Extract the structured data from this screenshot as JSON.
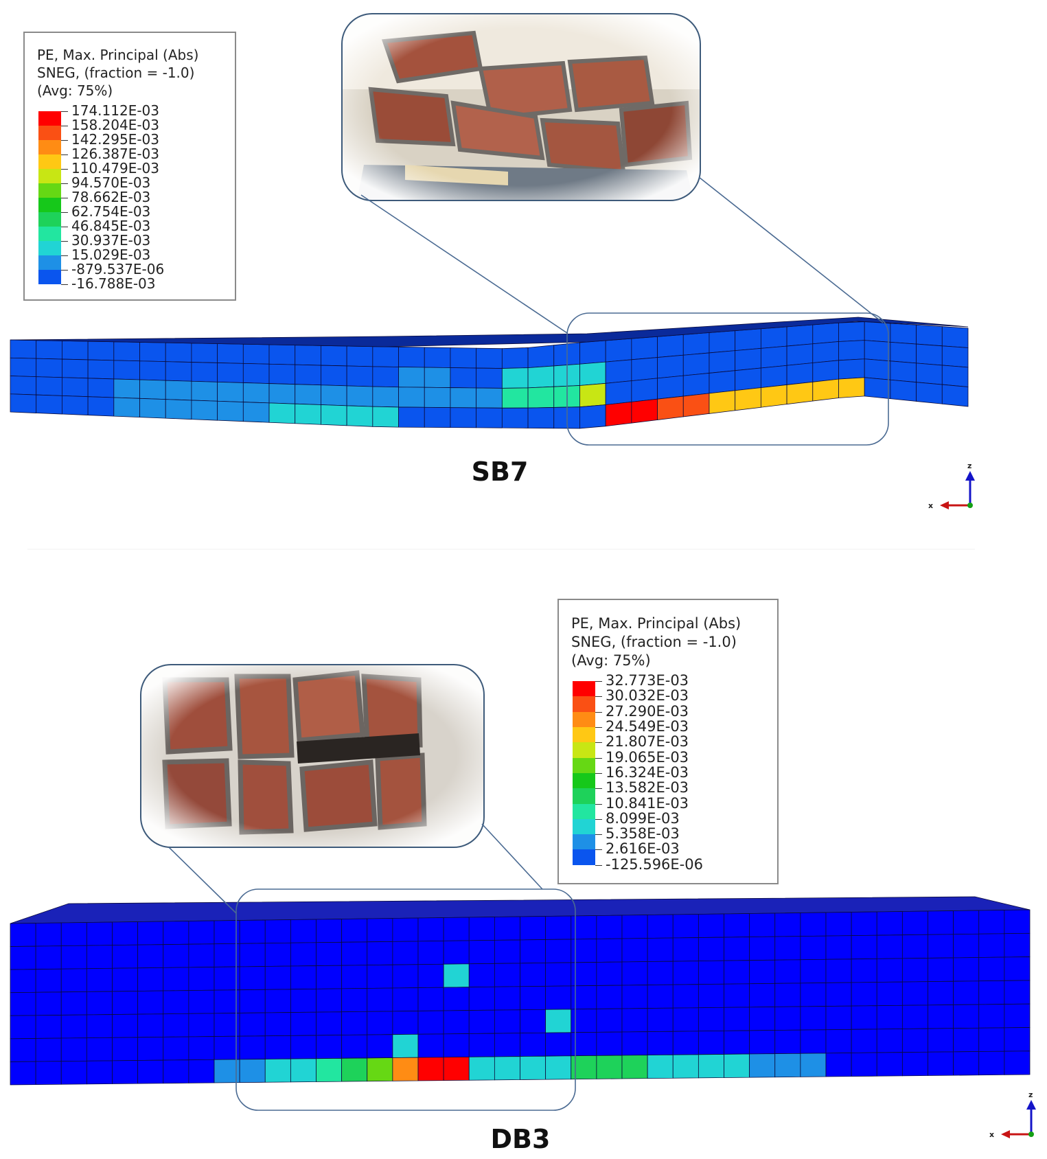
{
  "colors": {
    "contour": [
      "#0000ff",
      "#0a55ee",
      "#1e90e6",
      "#21d4d4",
      "#22e6a0",
      "#1ed25a",
      "#16c81a",
      "#66d814",
      "#c8e614",
      "#ffc814",
      "#ff8c14",
      "#fa5014",
      "#ff0000"
    ],
    "frame": "#5f7ea0",
    "mesh_line": "#0b0b3a"
  },
  "panels": [
    {
      "id": "sb7",
      "label": "SB7",
      "legend": {
        "line1": "PE, Max. Principal (Abs)",
        "line2": "SNEG, (fraction = -1.0)",
        "line3": "(Avg: 75%)",
        "values": [
          "174.112E-03",
          "158.204E-03",
          "142.295E-03",
          "126.387E-03",
          "110.479E-03",
          "94.570E-03",
          "78.662E-03",
          "62.754E-03",
          "46.845E-03",
          "30.937E-03",
          "15.029E-03",
          "-879.537E-06",
          "-16.788E-03"
        ]
      },
      "photo": {
        "subject": "cracked brick masonry close-up"
      },
      "triad": {
        "x": "x",
        "z": "z"
      }
    },
    {
      "id": "db3",
      "label": "DB3",
      "legend": {
        "line1": "PE, Max. Principal (Abs)",
        "line2": "SNEG, (fraction = -1.0)",
        "line3": "(Avg: 75%)",
        "values": [
          "32.773E-03",
          "30.032E-03",
          "27.290E-03",
          "24.549E-03",
          "21.807E-03",
          "19.065E-03",
          "16.324E-03",
          "13.582E-03",
          "10.841E-03",
          "8.099E-03",
          "5.358E-03",
          "2.616E-03",
          "-125.596E-06"
        ]
      },
      "photo": {
        "subject": "cracked brick masonry close-up"
      },
      "triad": {
        "x": "x",
        "z": "z"
      }
    }
  ]
}
